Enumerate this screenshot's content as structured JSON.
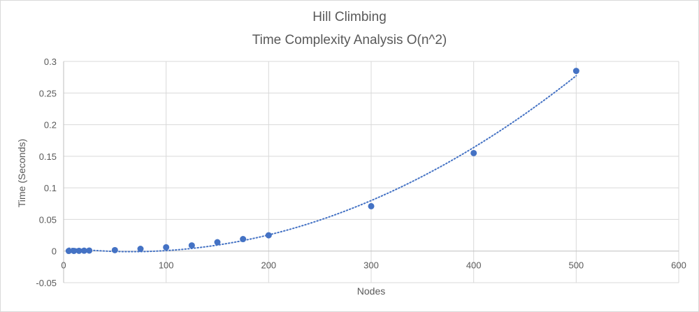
{
  "chart_data": {
    "type": "scatter",
    "title_lines": [
      "Hill Climbing",
      "Time Complexity Analysis O(n^2)"
    ],
    "xlabel": "Nodes",
    "ylabel": "Time (Seconds)",
    "xlim": [
      0,
      600
    ],
    "ylim": [
      -0.05,
      0.3
    ],
    "x_ticks": [
      "0",
      "100",
      "200",
      "300",
      "400",
      "500",
      "600"
    ],
    "x_tick_values": [
      0,
      100,
      200,
      300,
      400,
      500,
      600
    ],
    "y_ticks": [
      "-0.05",
      "0",
      "0.05",
      "0.1",
      "0.15",
      "0.2",
      "0.25",
      "0.3"
    ],
    "y_tick_values": [
      -0.05,
      0,
      0.05,
      0.1,
      0.15,
      0.2,
      0.25,
      0.3
    ],
    "grid": true,
    "legend": "none",
    "marker_color": "#4472C4",
    "trendline": {
      "type": "polynomial",
      "order": 2,
      "style": "dotted",
      "color": "#4472C4"
    },
    "points": [
      {
        "x": 5,
        "y": 0.0002
      },
      {
        "x": 10,
        "y": 0.0003
      },
      {
        "x": 15,
        "y": 0.0004
      },
      {
        "x": 20,
        "y": 0.0006
      },
      {
        "x": 25,
        "y": 0.0008
      },
      {
        "x": 50,
        "y": 0.0015
      },
      {
        "x": 75,
        "y": 0.0035
      },
      {
        "x": 100,
        "y": 0.006
      },
      {
        "x": 125,
        "y": 0.009
      },
      {
        "x": 150,
        "y": 0.014
      },
      {
        "x": 175,
        "y": 0.019
      },
      {
        "x": 200,
        "y": 0.025
      },
      {
        "x": 300,
        "y": 0.071
      },
      {
        "x": 400,
        "y": 0.155
      },
      {
        "x": 500,
        "y": 0.285
      }
    ]
  }
}
